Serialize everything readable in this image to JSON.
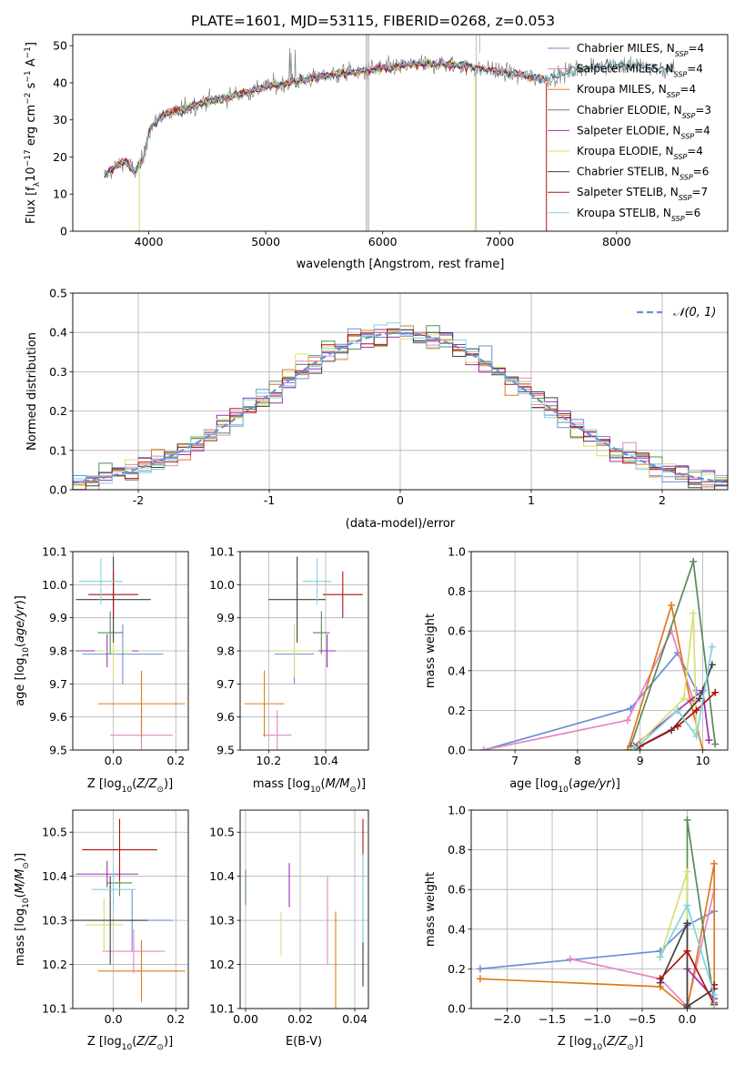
{
  "colors": {
    "Chabrier MILES": "#6b8ed6",
    "Salpeter MILES": "#e585c4",
    "Kroupa MILES": "#e07a1c",
    "Chabrier ELODIE": "#5a8a5a",
    "Salpeter ELODIE": "#9b30b8",
    "Kroupa ELODIE": "#d8e070",
    "Chabrier STELIB": "#404040",
    "Salpeter STELIB": "#b01010",
    "Kroupa STELIB": "#7fd3e0"
  },
  "chart_data": [
    {
      "id": "spectrum",
      "type": "line",
      "title": "PLATE=1601, MJD=53115, FIBERID=0268, z=0.053",
      "xlabel": "wavelength [Angstrom, rest frame]",
      "ylabel": "Flux [f_λ 10^-17 erg cm^-2 s^-1 A^-1]",
      "xlim": [
        3350,
        8950
      ],
      "ylim": [
        0,
        53
      ],
      "xticks": [
        4000,
        5000,
        6000,
        7000,
        8000
      ],
      "yticks": [
        0,
        10,
        20,
        30,
        40,
        50
      ],
      "grid": false,
      "legend_position": "right",
      "continuum": [
        [
          3620,
          15
        ],
        [
          3700,
          17
        ],
        [
          3800,
          19
        ],
        [
          3880,
          16
        ],
        [
          3960,
          20
        ],
        [
          4000,
          27
        ],
        [
          4100,
          31
        ],
        [
          4300,
          33
        ],
        [
          4500,
          35
        ],
        [
          4800,
          37
        ],
        [
          5000,
          39
        ],
        [
          5200,
          40
        ],
        [
          5500,
          42
        ],
        [
          5800,
          43
        ],
        [
          6000,
          44
        ],
        [
          6300,
          45
        ],
        [
          6600,
          45
        ],
        [
          6800,
          44
        ],
        [
          7000,
          43
        ],
        [
          7200,
          42
        ],
        [
          7400,
          41
        ],
        [
          7700,
          44
        ],
        [
          8000,
          45
        ],
        [
          8300,
          44
        ],
        [
          8500,
          43
        ]
      ],
      "series": [
        {
          "name": "Chabrier MILES",
          "n_ssp": "4",
          "x_range": [
            3620,
            7400
          ]
        },
        {
          "name": "Salpeter MILES",
          "n_ssp": "4",
          "x_range": [
            3620,
            7400
          ]
        },
        {
          "name": "Kroupa MILES",
          "n_ssp": "4",
          "x_range": [
            3620,
            7400
          ]
        },
        {
          "name": "Chabrier ELODIE",
          "n_ssp": "3",
          "x_range": [
            3620,
            6800
          ]
        },
        {
          "name": "Salpeter ELODIE",
          "n_ssp": "4",
          "x_range": [
            3620,
            6800
          ]
        },
        {
          "name": "Kroupa ELODIE",
          "n_ssp": "4",
          "x_range": [
            3620,
            6800
          ]
        },
        {
          "name": "Chabrier STELIB",
          "n_ssp": "6",
          "x_range": [
            3620,
            8500
          ]
        },
        {
          "name": "Salpeter STELIB",
          "n_ssp": "7",
          "x_range": [
            3620,
            7400
          ]
        },
        {
          "name": "Kroupa STELIB",
          "n_ssp": "6",
          "x_range": [
            3620,
            8500
          ]
        }
      ]
    },
    {
      "id": "residuals",
      "type": "line",
      "xlabel": "(data-model)/error",
      "ylabel": "Normed distribution",
      "xlim": [
        -2.5,
        2.5
      ],
      "ylim": [
        0,
        0.5
      ],
      "xticks": [
        -2,
        -1,
        0,
        1,
        2
      ],
      "yticks": [
        0.0,
        0.1,
        0.2,
        0.3,
        0.4,
        0.5
      ],
      "grid": true,
      "legend_position": "top-right",
      "reference": {
        "name": "N(0,1)",
        "mean": 0,
        "sd": 1
      },
      "bin_width": 0.1
    },
    {
      "id": "z-age",
      "type": "scatter",
      "xlabel": "Z [log10(Z/Z⊙)]",
      "ylabel": "age [log10(age/yr)]",
      "xlim": [
        -0.13,
        0.24
      ],
      "ylim": [
        9.5,
        10.1
      ],
      "xticks": [
        0.0,
        0.2
      ],
      "yticks": [
        9.5,
        9.6,
        9.7,
        9.8,
        9.9,
        10.0,
        10.1
      ],
      "grid": true,
      "points": [
        {
          "series": "Chabrier MILES",
          "x": 0.03,
          "xerr": 0.13,
          "y": 9.79,
          "yerr": 0.09
        },
        {
          "series": "Salpeter MILES",
          "x": 0.09,
          "xerr": 0.1,
          "y": 9.545,
          "yerr": 0.075
        },
        {
          "series": "Kroupa MILES",
          "x": 0.09,
          "xerr": 0.14,
          "y": 9.64,
          "yerr": 0.1
        },
        {
          "series": "Chabrier ELODIE",
          "x": -0.01,
          "xerr": 0.04,
          "y": 9.855,
          "yerr": 0.065
        },
        {
          "series": "Salpeter ELODIE",
          "x": -0.02,
          "xerr": 0.1,
          "y": 9.8,
          "yerr": 0.05
        },
        {
          "series": "Kroupa ELODIE",
          "x": 0.0,
          "xerr": 0.06,
          "y": 9.8,
          "yerr": 0.08
        },
        {
          "series": "Chabrier STELIB",
          "x": 0.0,
          "xerr": 0.12,
          "y": 9.955,
          "yerr": 0.13
        },
        {
          "series": "Salpeter STELIB",
          "x": 0.0,
          "xerr": 0.08,
          "y": 9.97,
          "yerr": 0.07
        },
        {
          "series": "Kroupa STELIB",
          "x": -0.04,
          "xerr": 0.07,
          "y": 10.01,
          "yerr": 0.07
        }
      ]
    },
    {
      "id": "mass-age",
      "type": "scatter",
      "xlabel": "mass [log10(M/M⊙)]",
      "xlim": [
        10.1,
        10.55
      ],
      "ylim": [
        9.5,
        10.1
      ],
      "xticks": [
        10.2,
        10.4
      ],
      "yticks": [
        9.5,
        9.6,
        9.7,
        9.8,
        9.9,
        10.0,
        10.1
      ],
      "grid": true,
      "points": [
        {
          "series": "Chabrier MILES",
          "x": 10.29,
          "xerr": 0.07,
          "y": 9.79,
          "yerr": 0.09
        },
        {
          "series": "Salpeter MILES",
          "x": 10.23,
          "xerr": 0.05,
          "y": 9.545,
          "yerr": 0.075
        },
        {
          "series": "Kroupa MILES",
          "x": 10.185,
          "xerr": 0.07,
          "y": 9.64,
          "yerr": 0.1
        },
        {
          "series": "Chabrier ELODIE",
          "x": 10.385,
          "xerr": 0.03,
          "y": 9.855,
          "yerr": 0.065
        },
        {
          "series": "Salpeter ELODIE",
          "x": 10.405,
          "xerr": 0.03,
          "y": 9.8,
          "yerr": 0.05
        },
        {
          "series": "Kroupa ELODIE",
          "x": 10.29,
          "xerr": 0.06,
          "y": 9.8,
          "yerr": 0.08
        },
        {
          "series": "Chabrier STELIB",
          "x": 10.3,
          "xerr": 0.1,
          "y": 9.955,
          "yerr": 0.13
        },
        {
          "series": "Salpeter STELIB",
          "x": 10.46,
          "xerr": 0.07,
          "y": 9.97,
          "yerr": 0.07
        },
        {
          "series": "Kroupa STELIB",
          "x": 10.37,
          "xerr": 0.05,
          "y": 10.01,
          "yerr": 0.07
        }
      ]
    },
    {
      "id": "age-weight",
      "type": "line",
      "xlabel": "age [log10(age/yr)]",
      "ylabel": "mass weight",
      "xlim": [
        6.3,
        10.4
      ],
      "ylim": [
        0.0,
        1.0
      ],
      "xticks": [
        7,
        8,
        9,
        10
      ],
      "yticks": [
        0.0,
        0.2,
        0.4,
        0.6,
        0.8,
        1.0
      ],
      "grid": true,
      "series": [
        {
          "name": "Chabrier MILES",
          "x": [
            6.5,
            8.85,
            9.6,
            9.9
          ],
          "y": [
            0.0,
            0.21,
            0.49,
            0.3
          ]
        },
        {
          "name": "Salpeter MILES",
          "x": [
            6.5,
            8.8,
            9.5,
            9.85
          ],
          "y": [
            0.0,
            0.15,
            0.6,
            0.25
          ]
        },
        {
          "name": "Kroupa MILES",
          "x": [
            8.8,
            9.5,
            9.8,
            10.0
          ],
          "y": [
            0.0,
            0.73,
            0.25,
            0.0
          ]
        },
        {
          "name": "Chabrier ELODIE",
          "x": [
            8.85,
            9.85,
            10.2
          ],
          "y": [
            0.02,
            0.95,
            0.03
          ]
        },
        {
          "name": "Salpeter ELODIE",
          "x": [
            8.9,
            9.6,
            10.0,
            10.1
          ],
          "y": [
            0.02,
            0.2,
            0.3,
            0.05
          ]
        },
        {
          "name": "Kroupa ELODIE",
          "x": [
            8.9,
            9.7,
            9.85,
            9.9
          ],
          "y": [
            0.01,
            0.26,
            0.69,
            0.1
          ]
        },
        {
          "name": "Chabrier STELIB",
          "x": [
            8.95,
            9.5,
            9.95,
            10.15
          ],
          "y": [
            0.01,
            0.1,
            0.26,
            0.43
          ]
        },
        {
          "name": "Salpeter STELIB",
          "x": [
            9.0,
            9.6,
            9.9,
            10.2
          ],
          "y": [
            0.02,
            0.12,
            0.2,
            0.29
          ]
        },
        {
          "name": "Kroupa STELIB",
          "x": [
            8.9,
            9.6,
            9.9,
            10.15
          ],
          "y": [
            0.0,
            0.2,
            0.07,
            0.52
          ]
        }
      ]
    },
    {
      "id": "z-mass",
      "type": "scatter",
      "xlabel": "Z [log10(Z/Z⊙)]",
      "ylabel": "mass [log10(M/M⊙)]",
      "xlim": [
        -0.13,
        0.24
      ],
      "ylim": [
        10.1,
        10.55
      ],
      "xticks": [
        0.0,
        0.2
      ],
      "yticks": [
        10.1,
        10.2,
        10.3,
        10.4,
        10.5
      ],
      "grid": true,
      "points": [
        {
          "series": "Chabrier MILES",
          "x": 0.06,
          "xerr": 0.13,
          "y": 10.3,
          "yerr": 0.07
        },
        {
          "series": "Salpeter MILES",
          "x": 0.065,
          "xerr": 0.1,
          "y": 10.23,
          "yerr": 0.05
        },
        {
          "series": "Kroupa MILES",
          "x": 0.09,
          "xerr": 0.14,
          "y": 10.185,
          "yerr": 0.07
        },
        {
          "series": "Chabrier ELODIE",
          "x": 0.02,
          "xerr": 0.04,
          "y": 10.385,
          "yerr": 0.03
        },
        {
          "series": "Salpeter ELODIE",
          "x": -0.02,
          "xerr": 0.1,
          "y": 10.405,
          "yerr": 0.03
        },
        {
          "series": "Kroupa ELODIE",
          "x": -0.03,
          "xerr": 0.06,
          "y": 10.29,
          "yerr": 0.06
        },
        {
          "series": "Chabrier STELIB",
          "x": -0.01,
          "xerr": 0.12,
          "y": 10.3,
          "yerr": 0.1
        },
        {
          "series": "Salpeter STELIB",
          "x": 0.02,
          "xerr": 0.12,
          "y": 10.46,
          "yerr": 0.07
        },
        {
          "series": "Kroupa STELIB",
          "x": 0.0,
          "xerr": 0.07,
          "y": 10.37,
          "yerr": 0.05
        }
      ]
    },
    {
      "id": "ebv-mass",
      "type": "scatter",
      "xlabel": "E(B-V)",
      "xlim": [
        -0.002,
        0.045
      ],
      "ylim": [
        10.1,
        10.55
      ],
      "xticks": [
        0.0,
        0.02,
        0.04
      ],
      "yticks": [
        10.1,
        10.2,
        10.3,
        10.4,
        10.5
      ],
      "grid": true,
      "points": [
        {
          "series": "Chabrier MILES",
          "x": 0.043,
          "y": 10.3,
          "yerr": 0.07
        },
        {
          "series": "Salpeter MILES",
          "x": 0.03,
          "y": 10.3,
          "yerr": 0.1
        },
        {
          "series": "Kroupa MILES",
          "x": 0.033,
          "y": 10.2,
          "yerr": 0.12
        },
        {
          "series": "Chabrier ELODIE",
          "x": 0.0,
          "y": 10.375,
          "yerr": 0.04
        },
        {
          "series": "Salpeter ELODIE",
          "x": 0.016,
          "y": 10.38,
          "yerr": 0.05
        },
        {
          "series": "Kroupa ELODIE",
          "x": 0.013,
          "y": 10.27,
          "yerr": 0.05
        },
        {
          "series": "Chabrier STELIB",
          "x": 0.043,
          "y": 10.2,
          "yerr": 0.05
        },
        {
          "series": "Salpeter STELIB",
          "x": 0.043,
          "y": 10.46,
          "yerr": 0.07
        },
        {
          "series": "Kroupa STELIB",
          "x": 0.043,
          "y": 10.35,
          "yerr": 0.1
        }
      ]
    },
    {
      "id": "z-weight",
      "type": "line",
      "xlabel": "Z [log10(Z/Z⊙)]",
      "ylabel": "mass weight",
      "xlim": [
        -2.4,
        0.45
      ],
      "ylim": [
        0.0,
        1.0
      ],
      "xticks": [
        -2.0,
        -1.5,
        -1.0,
        -0.5,
        0.0
      ],
      "yticks": [
        0.0,
        0.2,
        0.4,
        0.6,
        0.8,
        1.0
      ],
      "grid": true,
      "series": [
        {
          "name": "Chabrier MILES",
          "x": [
            -2.3,
            -0.3,
            0.0,
            0.3
          ],
          "y": [
            0.2,
            0.29,
            0.42,
            0.49
          ]
        },
        {
          "name": "Salpeter MILES",
          "x": [
            -1.3,
            -0.3,
            0.0,
            0.3
          ],
          "y": [
            0.25,
            0.15,
            0.01,
            0.6
          ]
        },
        {
          "name": "Kroupa MILES",
          "x": [
            -2.3,
            -0.3,
            0.0,
            0.3,
            0.3
          ],
          "y": [
            0.15,
            0.11,
            0.0,
            0.73,
            0.03
          ]
        },
        {
          "name": "Chabrier ELODIE",
          "x": [
            0.0,
            0.0,
            0.3
          ],
          "y": [
            0.0,
            0.95,
            0.03
          ]
        },
        {
          "name": "Salpeter ELODIE",
          "x": [
            0.0,
            0.0,
            0.3
          ],
          "y": [
            0.02,
            0.2,
            0.05
          ]
        },
        {
          "name": "Kroupa ELODIE",
          "x": [
            -0.3,
            0.0,
            0.0,
            0.3
          ],
          "y": [
            0.26,
            0.69,
            0.01,
            0.1
          ]
        },
        {
          "name": "Chabrier STELIB",
          "x": [
            -0.3,
            0.0,
            0.0,
            0.3
          ],
          "y": [
            0.13,
            0.43,
            0.01,
            0.1
          ]
        },
        {
          "name": "Salpeter STELIB",
          "x": [
            -0.3,
            0.0,
            0.3,
            0.3
          ],
          "y": [
            0.15,
            0.29,
            0.02,
            0.12
          ]
        },
        {
          "name": "Kroupa STELIB",
          "x": [
            -0.3,
            0.0,
            0.3,
            0.3
          ],
          "y": [
            0.26,
            0.52,
            0.07,
            0.0
          ]
        }
      ]
    }
  ]
}
